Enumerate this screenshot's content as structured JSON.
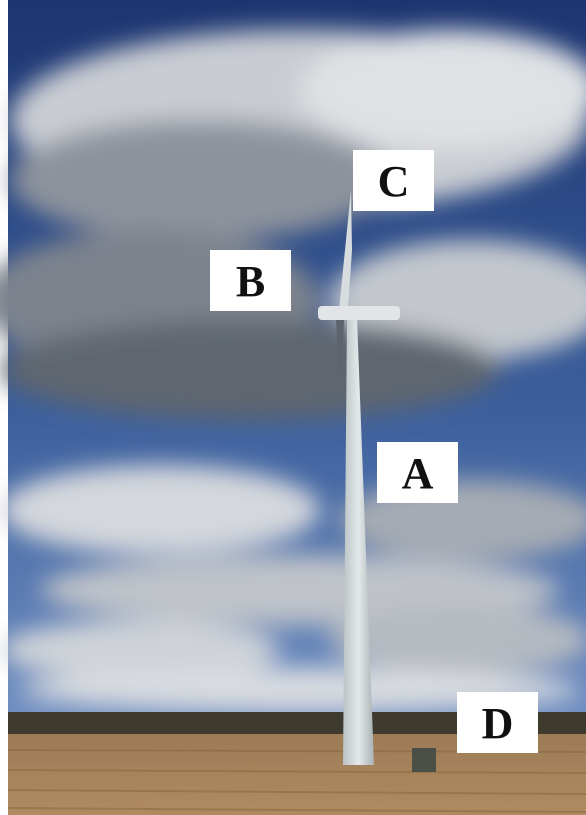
{
  "labels": [
    "C",
    "B",
    "A",
    "D"
  ]
}
